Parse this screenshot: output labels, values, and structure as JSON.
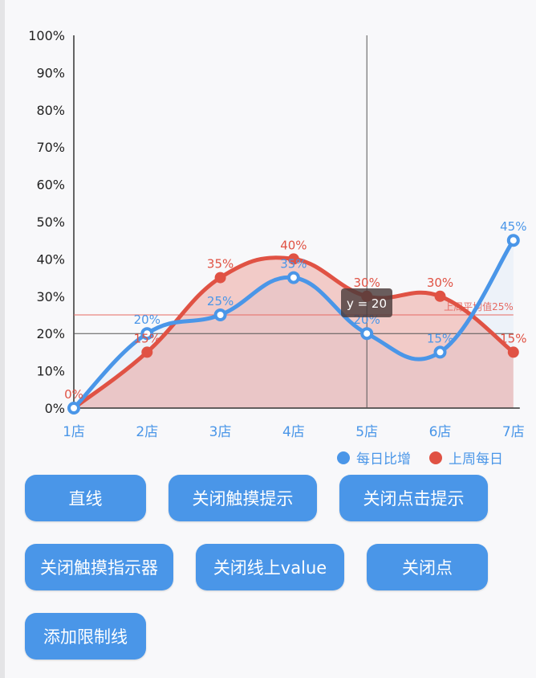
{
  "chart_data": {
    "type": "line",
    "categories": [
      "1店",
      "2店",
      "3店",
      "4店",
      "5店",
      "6店",
      "7店"
    ],
    "yticks": [
      "0%",
      "10%",
      "20%",
      "30%",
      "40%",
      "50%",
      "60%",
      "70%",
      "80%",
      "90%",
      "100%"
    ],
    "ylim": [
      0,
      100
    ],
    "series": [
      {
        "name": "每日比增",
        "values": [
          0,
          20,
          25,
          35,
          20,
          15,
          45
        ],
        "color": "#4a96e8",
        "labels": [
          "",
          "20%",
          "25%",
          "35%",
          "20%",
          "15%",
          "45%"
        ]
      },
      {
        "name": "上周每日",
        "values": [
          0,
          15,
          35,
          40,
          30,
          30,
          15
        ],
        "color": "#e05244",
        "labels": [
          "0%",
          "15%",
          "35%",
          "40%",
          "30%",
          "30%",
          "15%"
        ]
      }
    ],
    "limit_line": {
      "value": 25,
      "label": "上周平均值25%",
      "color": "#e66a63"
    },
    "crosshair": {
      "category": "5店",
      "value": 20
    },
    "tooltip": "y = 20",
    "legend_position": "bottom-right"
  },
  "buttons": {
    "straight": "直线",
    "close_touch_tip": "关闭触摸提示",
    "close_click_tip": "关闭点击提示",
    "close_touch_indicator": "关闭触摸指示器",
    "close_line_value": "关闭线上value",
    "close_point": "关闭点",
    "add_limit_line": "添加限制线"
  }
}
